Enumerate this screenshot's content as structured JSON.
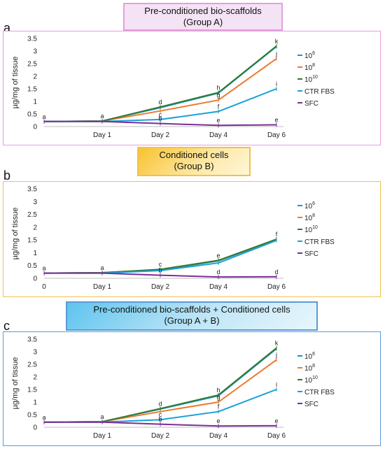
{
  "chart_data": [
    {
      "panel": "a",
      "type": "line",
      "title": "Pre-conditioned bio-scaffolds",
      "subtitle": "(Group A)",
      "ylabel": "µg/mg of tissue",
      "xlabel": "",
      "x": [
        "",
        "Day 1",
        "Day 2",
        "Day 4",
        "Day 6"
      ],
      "ylim": [
        0,
        3.5
      ],
      "yticks": [
        "0",
        "0.5",
        "1",
        "1.5",
        "2",
        "2.5",
        "3",
        "3.5"
      ],
      "grid": false,
      "legend_position": "right",
      "colors": {
        "panel_border": "#e3a0dc",
        "banner_bg": "#f3e2f3",
        "banner_border": "#e3a0dc"
      },
      "series": [
        {
          "name": "10^6",
          "name_base": "10",
          "name_sup": "6",
          "color": "#1a95c6",
          "values": [
            0.2,
            0.22,
            0.75,
            1.33,
            3.18
          ]
        },
        {
          "name": "10^8",
          "name_base": "10",
          "name_sup": "8",
          "color": "#ec7a30",
          "values": [
            0.2,
            0.22,
            0.62,
            1.05,
            2.7
          ]
        },
        {
          "name": "10^10",
          "name_base": "10",
          "name_sup": "10",
          "color": "#2f7a2f",
          "values": [
            0.2,
            0.22,
            0.78,
            1.35,
            3.2
          ]
        },
        {
          "name": "CTR FBS",
          "color": "#1aa0d8",
          "values": [
            0.2,
            0.2,
            0.28,
            0.6,
            1.5
          ]
        },
        {
          "name": "SFC",
          "color": "#7b2f96",
          "values": [
            0.2,
            0.2,
            0.12,
            0.05,
            0.07
          ]
        }
      ],
      "annotations": [
        {
          "x": 0,
          "y": 0.2,
          "text": "a"
        },
        {
          "x": 1,
          "y": 0.22,
          "text": "a"
        },
        {
          "x": 2,
          "y": 0.78,
          "text": "d"
        },
        {
          "x": 2,
          "y": 0.28,
          "text": "c"
        },
        {
          "x": 2,
          "y": 0.12,
          "text": "b"
        },
        {
          "x": 3,
          "y": 1.35,
          "text": "h"
        },
        {
          "x": 3,
          "y": 1.05,
          "text": "g"
        },
        {
          "x": 3,
          "y": 0.6,
          "text": "f"
        },
        {
          "x": 3,
          "y": 0.05,
          "text": "e"
        },
        {
          "x": 4,
          "y": 3.2,
          "text": "k"
        },
        {
          "x": 4,
          "y": 2.7,
          "text": "j"
        },
        {
          "x": 4,
          "y": 1.5,
          "text": "i"
        },
        {
          "x": 4,
          "y": 0.07,
          "text": "e"
        }
      ]
    },
    {
      "panel": "b",
      "type": "line",
      "title": "Conditioned cells",
      "subtitle": "(Group B)",
      "ylabel": "µg/mg of tissue",
      "xlabel": "",
      "x": [
        "0",
        "Day 1",
        "Day 2",
        "Day 4",
        "Day 6"
      ],
      "ylim": [
        0,
        3.5
      ],
      "yticks": [
        "0",
        "0.5",
        "1",
        "1.5",
        "2",
        "2.5",
        "3",
        "3.5"
      ],
      "grid": false,
      "legend_position": "right",
      "colors": {
        "panel_border": "#f0c24a",
        "banner_bg": "#fbdf8a",
        "banner_border": "#f0c24a"
      },
      "series": [
        {
          "name": "10^6",
          "name_base": "10",
          "name_sup": "6",
          "color": "#1a95c6",
          "values": [
            0.2,
            0.22,
            0.32,
            0.68,
            1.5
          ]
        },
        {
          "name": "10^8",
          "name_base": "10",
          "name_sup": "8",
          "color": "#ec7a30",
          "values": [
            0.2,
            0.22,
            0.34,
            0.7,
            1.52
          ]
        },
        {
          "name": "10^10",
          "name_base": "10",
          "name_sup": "10",
          "color": "#2f7a2f",
          "values": [
            0.2,
            0.22,
            0.35,
            0.7,
            1.53
          ]
        },
        {
          "name": "CTR FBS",
          "color": "#1aa0d8",
          "values": [
            0.2,
            0.2,
            0.3,
            0.6,
            1.48
          ]
        },
        {
          "name": "SFC",
          "color": "#7b2f96",
          "values": [
            0.2,
            0.2,
            0.12,
            0.05,
            0.06
          ]
        }
      ],
      "annotations": [
        {
          "x": 0,
          "y": 0.2,
          "text": "a"
        },
        {
          "x": 1,
          "y": 0.22,
          "text": "a"
        },
        {
          "x": 2,
          "y": 0.35,
          "text": "c"
        },
        {
          "x": 2,
          "y": 0.12,
          "text": "b"
        },
        {
          "x": 3,
          "y": 0.7,
          "text": "e"
        },
        {
          "x": 3,
          "y": 0.05,
          "text": "d"
        },
        {
          "x": 4,
          "y": 1.53,
          "text": "f"
        },
        {
          "x": 4,
          "y": 0.06,
          "text": "d"
        }
      ]
    },
    {
      "panel": "c",
      "type": "line",
      "title": "Pre-conditioned bio-scaffolds + Conditioned cells",
      "subtitle": "(Group A + B)",
      "ylabel": "µg/mg of tissue",
      "xlabel": "",
      "x": [
        "",
        "Day 1",
        "Day 2",
        "Day 4",
        "Day 6"
      ],
      "ylim": [
        0,
        3.5
      ],
      "yticks": [
        "0",
        "0.5",
        "1",
        "1.5",
        "2",
        "2.5",
        "3",
        "3.5"
      ],
      "grid": false,
      "legend_position": "right",
      "colors": {
        "panel_border": "#5b9bd5",
        "banner_bg": "#bfe3f5",
        "banner_border": "#5b9bd5"
      },
      "series": [
        {
          "name": "10^6",
          "name_base": "10",
          "name_sup": "6",
          "color": "#1a95c6",
          "values": [
            0.2,
            0.22,
            0.72,
            1.25,
            3.12
          ]
        },
        {
          "name": "10^8",
          "name_base": "10",
          "name_sup": "8",
          "color": "#ec7a30",
          "values": [
            0.2,
            0.22,
            0.62,
            1.0,
            2.68
          ]
        },
        {
          "name": "10^10",
          "name_base": "10",
          "name_sup": "10",
          "color": "#2f7a2f",
          "values": [
            0.2,
            0.22,
            0.74,
            1.28,
            3.15
          ]
        },
        {
          "name": "CTR FBS",
          "color": "#1aa0d8",
          "values": [
            0.2,
            0.2,
            0.3,
            0.62,
            1.5
          ]
        },
        {
          "name": "SFC",
          "color": "#7b2f96",
          "values": [
            0.2,
            0.2,
            0.12,
            0.05,
            0.06
          ]
        }
      ],
      "annotations": [
        {
          "x": 0,
          "y": 0.2,
          "text": "a"
        },
        {
          "x": 1,
          "y": 0.22,
          "text": "a"
        },
        {
          "x": 2,
          "y": 0.74,
          "text": "d"
        },
        {
          "x": 2,
          "y": 0.3,
          "text": "c"
        },
        {
          "x": 2,
          "y": 0.12,
          "text": "b"
        },
        {
          "x": 3,
          "y": 1.28,
          "text": "h"
        },
        {
          "x": 3,
          "y": 1.0,
          "text": "g"
        },
        {
          "x": 3,
          "y": 0.62,
          "text": "f"
        },
        {
          "x": 3,
          "y": 0.05,
          "text": "e"
        },
        {
          "x": 4,
          "y": 3.15,
          "text": "k"
        },
        {
          "x": 4,
          "y": 2.68,
          "text": "j"
        },
        {
          "x": 4,
          "y": 1.5,
          "text": "i"
        },
        {
          "x": 4,
          "y": 0.06,
          "text": "e"
        }
      ]
    }
  ]
}
